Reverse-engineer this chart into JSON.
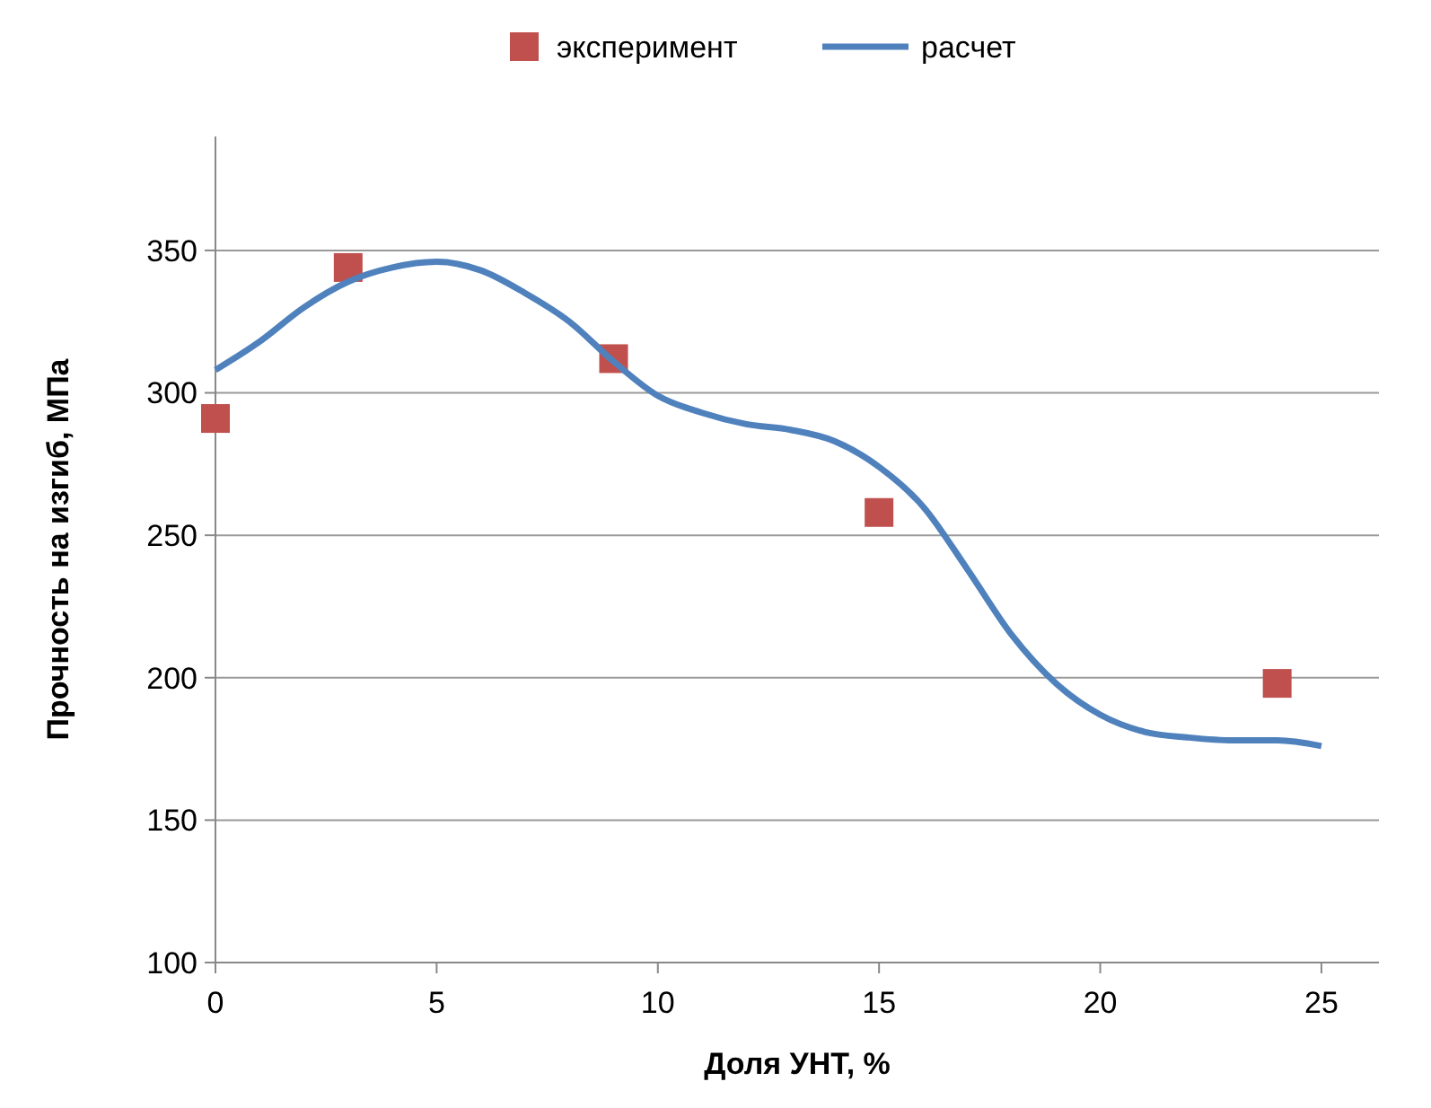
{
  "chart_data": {
    "type": "scatter",
    "xlabel": "Доля УНТ, %",
    "ylabel": "Прочность на изгиб, МПа",
    "xlim": [
      0,
      26.3
    ],
    "xticks": [
      0,
      5,
      10,
      15,
      20,
      25
    ],
    "ylim": [
      100,
      390
    ],
    "yticks": [
      100,
      150,
      200,
      250,
      300,
      350
    ],
    "grid": "y",
    "legend": "top",
    "series": [
      {
        "name": "эксперимент",
        "marker": "square",
        "color": "#c0504d",
        "x": [
          0,
          3,
          9,
          15,
          24
        ],
        "values": [
          291,
          344,
          312,
          258,
          198
        ]
      },
      {
        "name": "расчет",
        "type": "line",
        "marker": "none",
        "color": "#4f81bd",
        "x": [
          0,
          1,
          2,
          3,
          4,
          5,
          6,
          7,
          8,
          9,
          10,
          11,
          12,
          13,
          14,
          15,
          16,
          17,
          18,
          19,
          20,
          21,
          22,
          23,
          24,
          25
        ],
        "values": [
          308,
          318,
          330,
          339,
          344,
          346,
          343,
          335,
          325,
          311,
          299,
          293,
          289,
          287,
          283,
          274,
          260,
          238,
          215,
          198,
          187,
          181,
          179,
          178,
          178,
          176
        ]
      }
    ]
  }
}
